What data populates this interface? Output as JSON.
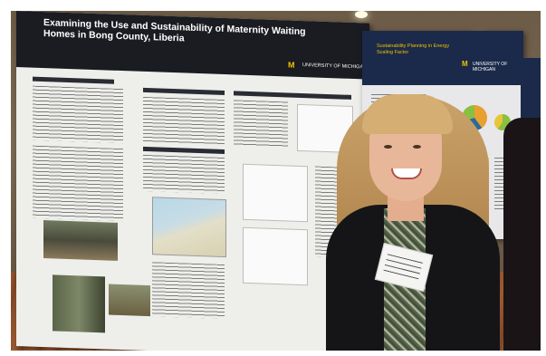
{
  "poster_left": {
    "title": "Examining the Use and Sustainability of Maternity Waiting Homes in Bong County, Liberia",
    "logo_mark": "M",
    "logo_text": "UNIVERSITY OF MICHIGAN"
  },
  "poster_right": {
    "title": "Sustainability Planning in Energy Scaling Factor",
    "logo_mark": "M",
    "logo_text": "UNIVERSITY OF MICHIGAN"
  },
  "colors": {
    "poster_header": "#1a1c22",
    "michigan_maize": "#f2c200",
    "michigan_blue": "#1b2a4a",
    "jacket": "#151518",
    "hair": "#c9a36a"
  }
}
